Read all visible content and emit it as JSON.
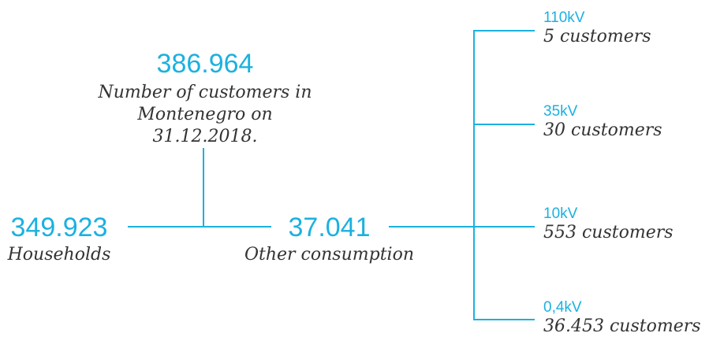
{
  "total": {
    "value": "386.964",
    "label_line1": "Number of customers in",
    "label_line2": "Montenegro on 31.12.2018."
  },
  "households": {
    "value": "349.923",
    "label": "Households"
  },
  "other": {
    "value": "37.041",
    "label": "Other consumption"
  },
  "levels": [
    {
      "voltage": "110kV",
      "customers": "5 customers"
    },
    {
      "voltage": "35kV",
      "customers": "30 customers"
    },
    {
      "voltage": "10kV",
      "customers": "553 customers"
    },
    {
      "voltage": "0,4kV",
      "customers": "36.453 customers"
    }
  ],
  "colors": {
    "accent": "#1bb1e0",
    "text": "#333333"
  }
}
